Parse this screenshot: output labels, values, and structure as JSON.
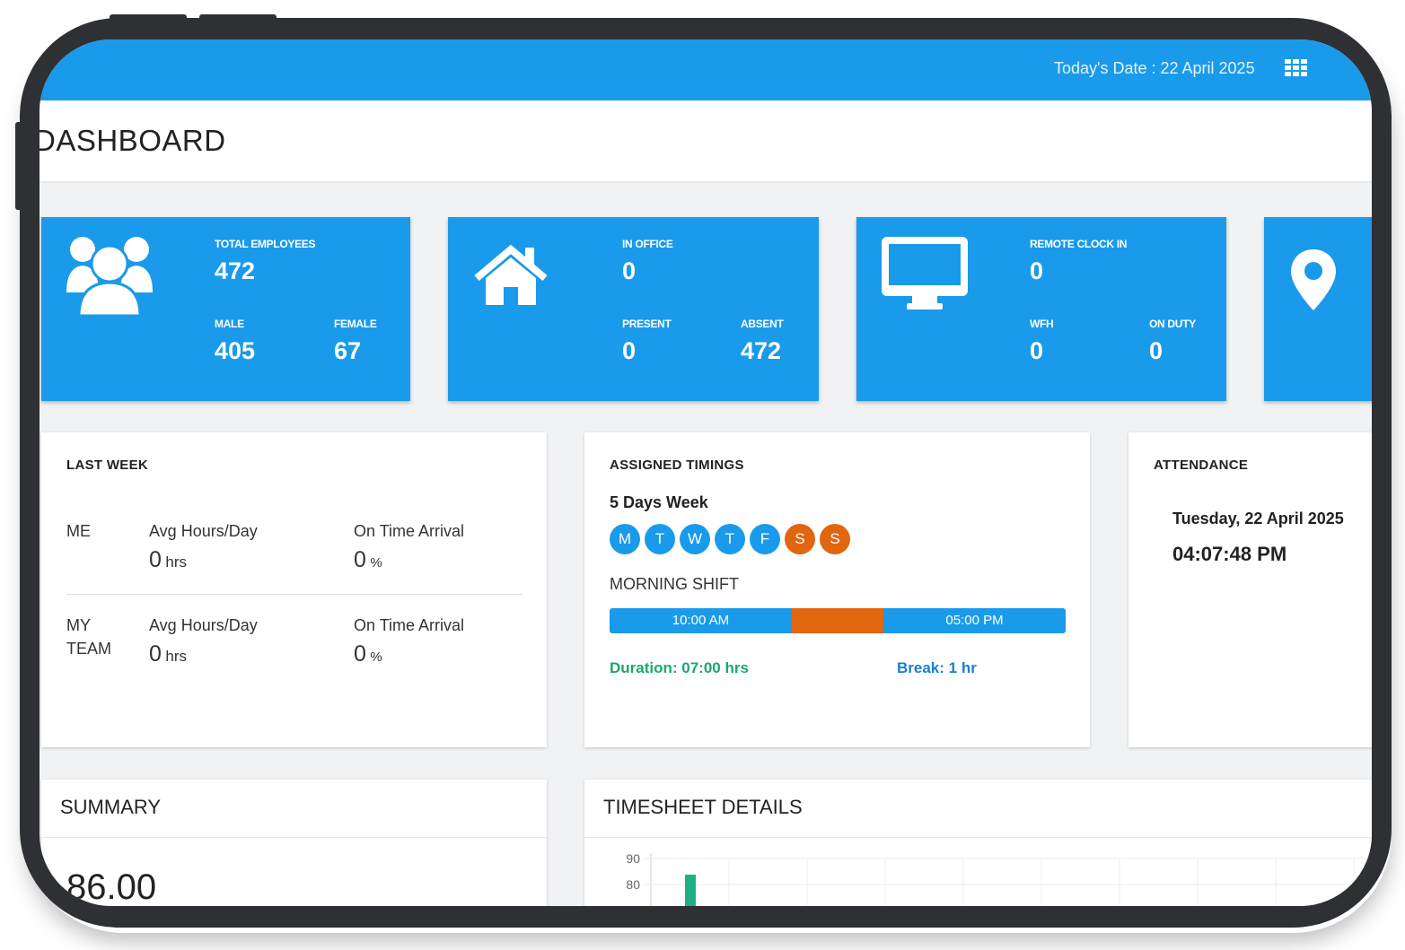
{
  "topbar": {
    "today_date": "Today's Date : 22 April 2025"
  },
  "header": {
    "title": "DASHBOARD"
  },
  "cards": {
    "total_employees": {
      "label": "TOTAL EMPLOYEES",
      "value": "472",
      "male_label": "MALE",
      "male_value": "405",
      "female_label": "FEMALE",
      "female_value": "67"
    },
    "in_office": {
      "label": "IN OFFICE",
      "value": "0",
      "present_label": "PRESENT",
      "present_value": "0",
      "absent_label": "ABSENT",
      "absent_value": "472"
    },
    "remote": {
      "label": "REMOTE CLOCK IN",
      "value": "0",
      "wfh_label": "WFH",
      "wfh_value": "0",
      "on_duty_label": "ON DUTY",
      "on_duty_value": "0"
    }
  },
  "last_week": {
    "title": "LAST WEEK",
    "me_label": "ME",
    "me_avg_label": "Avg Hours/Day",
    "me_avg_value": "0",
    "me_avg_unit": "hrs",
    "me_ota_label": "On Time Arrival",
    "me_ota_value": "0",
    "me_ota_unit": "%",
    "team_label_1": "MY",
    "team_label_2": "TEAM",
    "team_avg_label": "Avg Hours/Day",
    "team_avg_value": "0",
    "team_avg_unit": "hrs",
    "team_ota_label": "On Time Arrival",
    "team_ota_value": "0",
    "team_ota_unit": "%"
  },
  "assigned_timings": {
    "title": "ASSIGNED TIMINGS",
    "week_type": "5 Days Week",
    "days": [
      "M",
      "T",
      "W",
      "T",
      "F",
      "S",
      "S"
    ],
    "shift_name": "MORNING SHIFT",
    "start_time": "10:00 AM",
    "end_time": "05:00 PM",
    "duration": "Duration: 07:00 hrs",
    "break": "Break: 1 hr"
  },
  "attendance": {
    "title": "ATTENDANCE",
    "date": "Tuesday, 22 April 2025",
    "time": "04:07:48 PM"
  },
  "summary": {
    "title": "SUMMARY",
    "value": "86.00"
  },
  "timesheet": {
    "title": "TIMESHEET DETAILS"
  },
  "chart_data": {
    "type": "bar",
    "title": "TIMESHEET DETAILS",
    "y_ticks": [
      "90",
      "80"
    ],
    "grid": true
  },
  "colors": {
    "primary": "#1a9aea",
    "weekend": "#e2650f",
    "duration": "#1aa86e",
    "break": "#1a7fcc",
    "bar": "#1fae86"
  }
}
